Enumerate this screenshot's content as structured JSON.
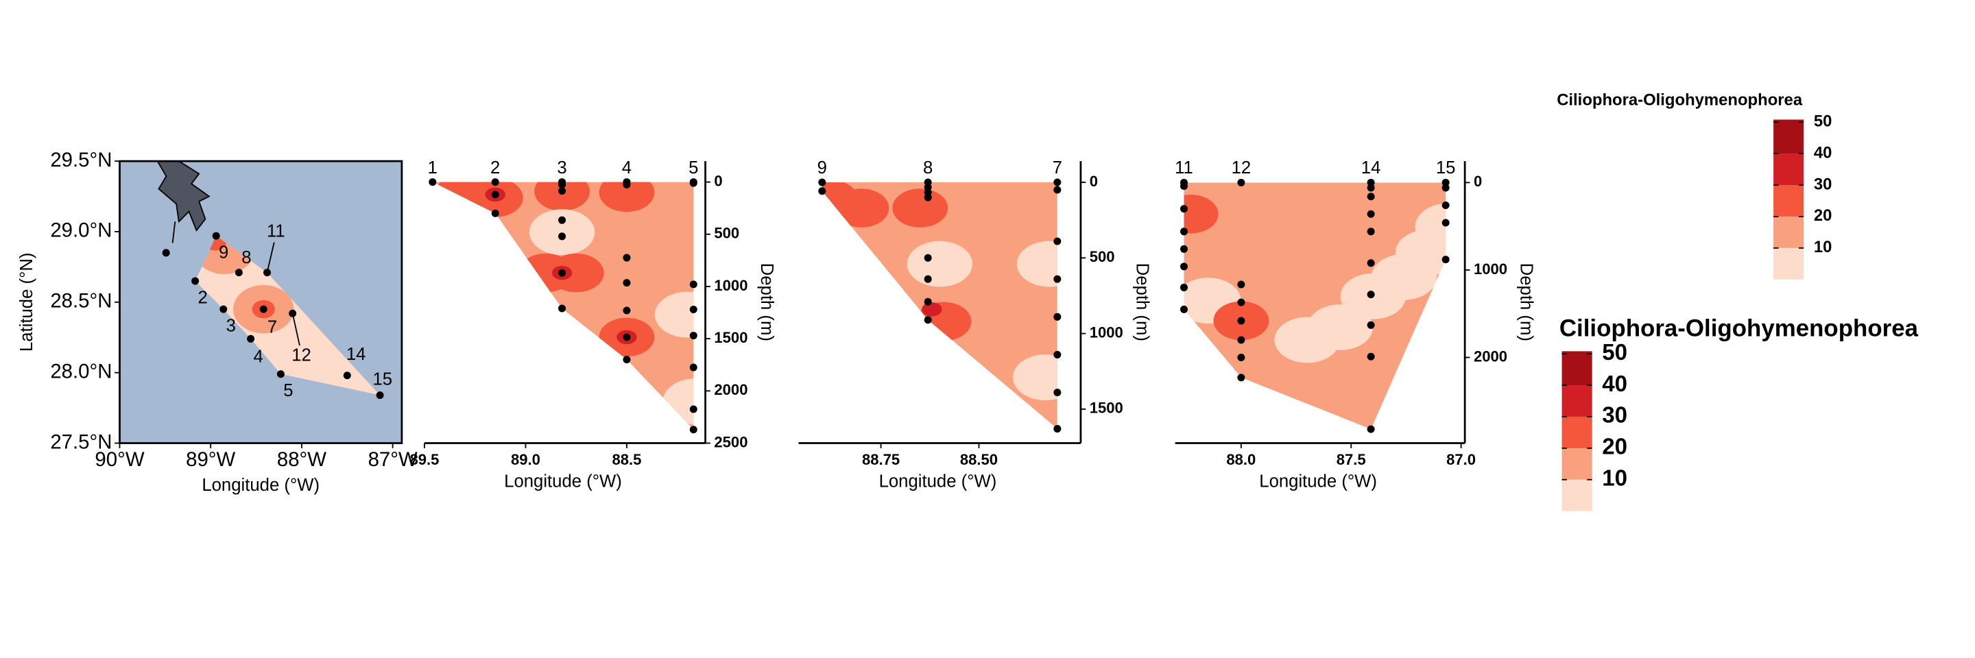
{
  "chart_data": [
    {
      "type": "map",
      "xlabel": "Longitude (°W)",
      "ylabel": "Latitude (°N)",
      "xlim": [
        90,
        86.9
      ],
      "ylim": [
        27.5,
        29.5
      ],
      "xticks": [
        {
          "value": 90,
          "label": "90°W"
        },
        {
          "value": 89,
          "label": "89°W"
        },
        {
          "value": 88,
          "label": "88°W"
        },
        {
          "value": 87,
          "label": "87°W"
        }
      ],
      "yticks": [
        {
          "value": 27.5,
          "label": "27.5°N"
        },
        {
          "value": 28,
          "label": "28.0°N"
        },
        {
          "value": 28.5,
          "label": "28.5°N"
        },
        {
          "value": 29,
          "label": "29.0°N"
        },
        {
          "value": 29.5,
          "label": "29.5°N"
        }
      ],
      "stations": {
        "x": [
          89.49,
          88.94,
          88.69,
          88.38,
          89.17,
          88.86,
          88.42,
          88.1,
          88.56,
          88.23,
          87.5,
          87.14
        ],
        "y": [
          28.85,
          28.97,
          28.71,
          28.71,
          28.65,
          28.45,
          28.45,
          28.42,
          28.24,
          27.99,
          27.98,
          27.84
        ],
        "labels": [
          null,
          "9",
          "8",
          "11",
          "2",
          "3",
          "7",
          "12",
          "4",
          "5",
          "14",
          "15"
        ]
      },
      "background": 5,
      "patches": [
        {
          "x": 88.85,
          "y": 28.87,
          "value": 15
        },
        {
          "x": 88.95,
          "y": 28.93,
          "value": 25
        },
        {
          "x": 88.42,
          "y": 28.45,
          "value": 15
        },
        {
          "x": 88.42,
          "y": 28.45,
          "value": 25
        }
      ]
    },
    {
      "type": "section",
      "xlabel": "Longitude (°W)",
      "ylabel": "Depth (m)",
      "xlim": [
        89.5,
        88.13
      ],
      "ylim": [
        -200,
        2500
      ],
      "xticks": [
        89.5,
        {
          "value": 89,
          "label": "89.0"
        },
        88.5
      ],
      "yticks": [
        0,
        500,
        1000,
        1500,
        2000,
        2500
      ],
      "stations": [
        {
          "label": "1",
          "x": 89.46,
          "depths": [
            0
          ]
        },
        {
          "label": "2",
          "x": 89.15,
          "depths": [
            0,
            120,
            300
          ]
        },
        {
          "label": "3",
          "x": 88.82,
          "depths": [
            0,
            25,
            85,
            365,
            520,
            870,
            1210
          ]
        },
        {
          "label": "4",
          "x": 88.5,
          "depths": [
            0,
            25,
            725,
            965,
            1230,
            1485,
            1700
          ]
        },
        {
          "label": "5",
          "x": 88.17,
          "depths": [
            0,
            10,
            980,
            1220,
            1470,
            1775,
            2175,
            2370
          ]
        }
      ],
      "background": 15,
      "patches": [
        {
          "x": 89.3,
          "y": 80,
          "value": 25
        },
        {
          "x": 89.15,
          "y": 150,
          "value": 25
        },
        {
          "x": 89.15,
          "y": 120,
          "value": 35
        },
        {
          "x": 88.82,
          "y": 90,
          "value": 25
        },
        {
          "x": 88.5,
          "y": 100,
          "value": 25
        },
        {
          "x": 88.82,
          "y": 480,
          "value": 5
        },
        {
          "x": 88.9,
          "y": 870,
          "value": 25
        },
        {
          "x": 88.75,
          "y": 870,
          "value": 25
        },
        {
          "x": 88.82,
          "y": 870,
          "value": 35
        },
        {
          "x": 88.5,
          "y": 1485,
          "value": 25
        },
        {
          "x": 88.5,
          "y": 1485,
          "value": 35
        },
        {
          "x": 88.2,
          "y": 1270,
          "value": 5
        },
        {
          "x": 88.16,
          "y": 2100,
          "value": 5
        }
      ]
    },
    {
      "type": "section",
      "xlabel": "Longitude (°W)",
      "ylabel": "Depth (m)",
      "xlim": [
        88.96,
        88.25
      ],
      "ylim": [
        -140,
        1725
      ],
      "xticks": [
        88.75,
        {
          "value": 88.5,
          "label": "88.50"
        }
      ],
      "yticks": [
        0,
        500,
        1000,
        1500
      ],
      "stations": [
        {
          "label": "9",
          "x": 88.9,
          "depths": [
            0,
            58
          ]
        },
        {
          "label": "8",
          "x": 88.63,
          "depths": [
            0,
            33,
            67,
            100,
            500,
            640,
            790,
            910
          ]
        },
        {
          "label": "7",
          "x": 88.3,
          "depths": [
            0,
            50,
            390,
            640,
            890,
            1140,
            1390,
            1630
          ]
        }
      ],
      "background": 15,
      "patches": [
        {
          "x": 88.88,
          "y": 110,
          "value": 25
        },
        {
          "x": 88.8,
          "y": 170,
          "value": 25
        },
        {
          "x": 88.65,
          "y": 170,
          "value": 25
        },
        {
          "x": 88.6,
          "y": 540,
          "value": 5
        },
        {
          "x": 88.59,
          "y": 920,
          "value": 25
        },
        {
          "x": 88.62,
          "y": 840,
          "value": 35
        },
        {
          "x": 88.32,
          "y": 540,
          "value": 5
        },
        {
          "x": 88.33,
          "y": 1290,
          "value": 5
        }
      ]
    },
    {
      "type": "section",
      "xlabel": "Longitude (°W)",
      "ylabel": "Depth (m)",
      "xlim": [
        88.3,
        87.0
      ],
      "ylim": [
        -245,
        2980
      ],
      "xticks": [
        {
          "value": 88,
          "label": "88.0"
        },
        87.5,
        {
          "value": 87,
          "label": "87.0"
        }
      ],
      "yticks": [
        0,
        1000,
        2000
      ],
      "stations": [
        {
          "label": "11",
          "x": 88.26,
          "depths": [
            0,
            40,
            300,
            560,
            760,
            960,
            1200,
            1450
          ]
        },
        {
          "label": "12",
          "x": 88.0,
          "depths": [
            0,
            1165,
            1370,
            1580,
            1800,
            2000,
            2230
          ]
        },
        {
          "label": "14",
          "x": 87.41,
          "depths": [
            0,
            60,
            160,
            360,
            560,
            920,
            1280,
            1630,
            1990,
            2820
          ]
        },
        {
          "label": "15",
          "x": 87.07,
          "depths": [
            0,
            60,
            260,
            460,
            880
          ]
        }
      ],
      "background": 15,
      "patches": [
        {
          "x": 87.55,
          "y": 1655,
          "value": 5
        },
        {
          "x": 87.4,
          "y": 1300,
          "value": 5
        },
        {
          "x": 87.26,
          "y": 1080,
          "value": 5
        },
        {
          "x": 87.7,
          "y": 1800,
          "value": 5
        },
        {
          "x": 88.15,
          "y": 1350,
          "value": 5
        },
        {
          "x": 87.06,
          "y": 500,
          "value": 5
        },
        {
          "x": 87.15,
          "y": 800,
          "value": 5
        },
        {
          "x": 88.23,
          "y": 360,
          "value": 25
        },
        {
          "x": 88.0,
          "y": 1580,
          "value": 25
        }
      ]
    }
  ],
  "legends": [
    {
      "title": "Ciliophora-Oligohymenophorea",
      "breaks": [
        10,
        20,
        30,
        40,
        50
      ],
      "colors": [
        "#fddccb",
        "#f9a07f",
        "#f4573b",
        "#d11f25",
        "#a50f15"
      ]
    },
    {
      "title": "Ciliophora-Oligohymenophorea",
      "breaks": [
        10,
        20,
        30,
        40,
        50
      ],
      "colors": [
        "#fddccb",
        "#f9a07f",
        "#f4573b",
        "#d11f25",
        "#a50f15"
      ]
    }
  ]
}
